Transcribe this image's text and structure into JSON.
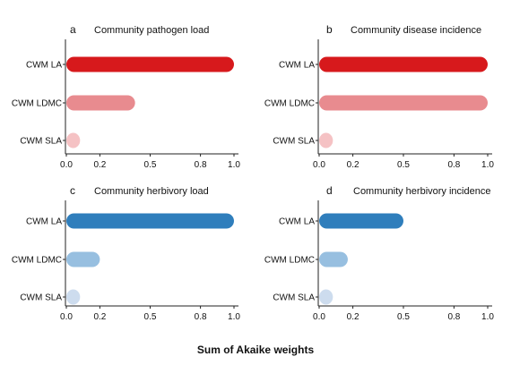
{
  "chart_data": [
    {
      "panel": "a",
      "type": "bar",
      "orientation": "horizontal",
      "title": "Community pathogen load",
      "categories": [
        "CWM LA",
        "CWM LDMC",
        "CWM SLA"
      ],
      "values": [
        1.0,
        0.41,
        0.02
      ],
      "colors": [
        "#d7191c",
        "#e88b8f",
        "#f5c2c4"
      ],
      "xlim": [
        0,
        1.0
      ],
      "xticks": [
        "0.0",
        "0.2",
        "0.5",
        "0.8",
        "1.0"
      ],
      "xtick_values": [
        0.0,
        0.2,
        0.5,
        0.8,
        1.0
      ]
    },
    {
      "panel": "b",
      "type": "bar",
      "orientation": "horizontal",
      "title": "Community disease incidence",
      "categories": [
        "CWM LA",
        "CWM LDMC",
        "CWM SLA"
      ],
      "values": [
        1.0,
        1.0,
        0.02
      ],
      "colors": [
        "#d7191c",
        "#e88b8f",
        "#f5c2c4"
      ],
      "xlim": [
        0,
        1.0
      ],
      "xticks": [
        "0.0",
        "0.2",
        "0.5",
        "0.8",
        "1.0"
      ],
      "xtick_values": [
        0.0,
        0.2,
        0.5,
        0.8,
        1.0
      ]
    },
    {
      "panel": "c",
      "type": "bar",
      "orientation": "horizontal",
      "title": "Community herbivory load",
      "categories": [
        "CWM LA",
        "CWM LDMC",
        "CWM SLA"
      ],
      "values": [
        1.0,
        0.2,
        0.02
      ],
      "colors": [
        "#2f7ebc",
        "#97bfe0",
        "#cddcee"
      ],
      "xlim": [
        0,
        1.0
      ],
      "xticks": [
        "0.0",
        "0.2",
        "0.5",
        "0.8",
        "1.0"
      ],
      "xtick_values": [
        0.0,
        0.2,
        0.5,
        0.8,
        1.0
      ]
    },
    {
      "panel": "d",
      "type": "bar",
      "orientation": "horizontal",
      "title": "Community herbivory incidence",
      "categories": [
        "CWM LA",
        "CWM LDMC",
        "CWM SLA"
      ],
      "values": [
        0.5,
        0.17,
        0.02
      ],
      "colors": [
        "#2f7ebc",
        "#97bfe0",
        "#cddcee"
      ],
      "xlim": [
        0,
        1.0
      ],
      "xticks": [
        "0.0",
        "0.2",
        "0.5",
        "0.8",
        "1.0"
      ],
      "xtick_values": [
        0.0,
        0.2,
        0.5,
        0.8,
        1.0
      ]
    }
  ],
  "xlabel": "Sum of Akaike weights"
}
